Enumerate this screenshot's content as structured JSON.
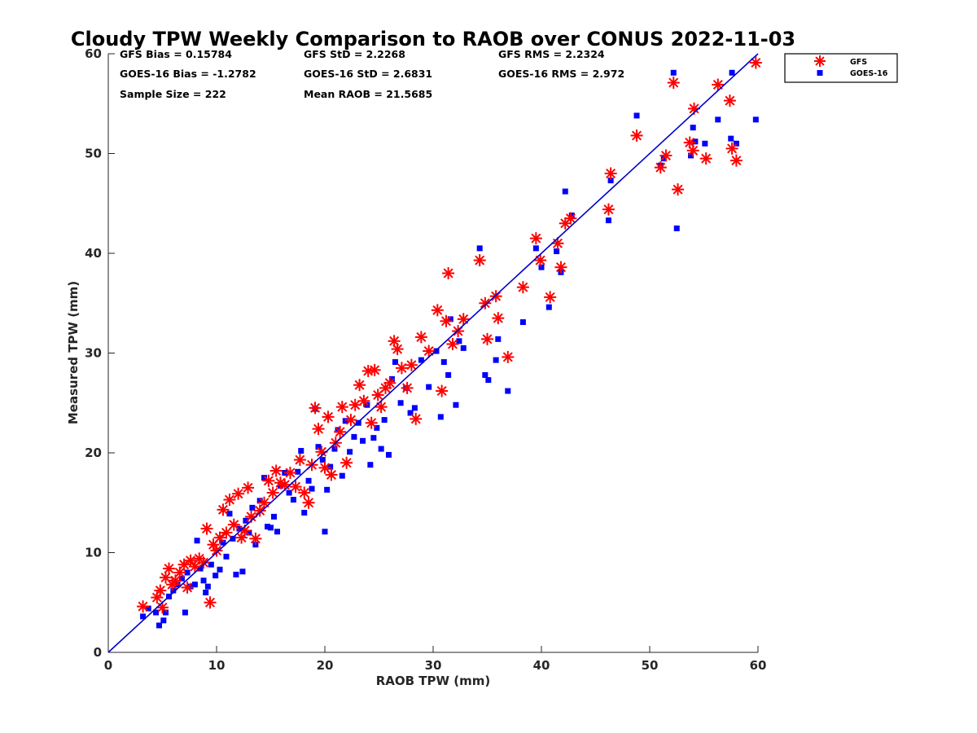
{
  "chart_data": {
    "type": "scatter",
    "title": "Cloudy TPW Weekly Comparison to RAOB over CONUS 2022-11-03",
    "xlabel": "RAOB TPW (mm)",
    "ylabel": "Measured TPW (mm)",
    "xlim": [
      0,
      60
    ],
    "ylim": [
      0,
      60
    ],
    "xticks": [
      "0",
      "10",
      "20",
      "30",
      "40",
      "50",
      "60"
    ],
    "yticks": [
      "0",
      "10",
      "20",
      "30",
      "40",
      "50",
      "60"
    ],
    "grid": false,
    "legend_position": "outside-top-right",
    "reference_line": {
      "x": [
        0,
        60
      ],
      "y": [
        0,
        60
      ],
      "color": "#0000cc"
    },
    "stats": {
      "gfs_bias": "GFS Bias = 0.15784",
      "gfs_std": "GFS StD = 2.2268",
      "gfs_rms": "GFS RMS = 2.2324",
      "goes_bias": "GOES-16 Bias = -1.2782",
      "goes_std": "GOES-16 StD = 2.6831",
      "goes_rms": "GOES-16 RMS = 2.972",
      "sample_size": "Sample Size = 222",
      "mean_raob": "Mean RAOB = 21.5685"
    },
    "series": [
      {
        "name": "GFS",
        "marker": "asterisk",
        "color": "#ff0000",
        "points": [
          [
            3.2,
            4.6
          ],
          [
            4.5,
            5.5
          ],
          [
            4.8,
            6.2
          ],
          [
            5.0,
            4.5
          ],
          [
            5.3,
            7.5
          ],
          [
            5.6,
            8.4
          ],
          [
            5.9,
            6.8
          ],
          [
            6.2,
            7.2
          ],
          [
            6.6,
            8.0
          ],
          [
            7.0,
            8.8
          ],
          [
            7.3,
            6.5
          ],
          [
            7.6,
            9.2
          ],
          [
            8.0,
            8.6
          ],
          [
            8.4,
            9.4
          ],
          [
            8.8,
            9.0
          ],
          [
            9.1,
            12.4
          ],
          [
            9.4,
            5.0
          ],
          [
            9.7,
            10.8
          ],
          [
            10.0,
            10.2
          ],
          [
            10.3,
            11.5
          ],
          [
            10.6,
            14.3
          ],
          [
            10.9,
            12.0
          ],
          [
            11.2,
            15.3
          ],
          [
            11.6,
            12.8
          ],
          [
            12.0,
            15.9
          ],
          [
            12.3,
            11.5
          ],
          [
            12.6,
            12.2
          ],
          [
            12.9,
            16.5
          ],
          [
            13.2,
            13.6
          ],
          [
            13.6,
            11.4
          ],
          [
            14.0,
            14.2
          ],
          [
            14.4,
            15.0
          ],
          [
            14.8,
            17.2
          ],
          [
            15.2,
            16.0
          ],
          [
            15.5,
            18.2
          ],
          [
            15.9,
            17.0
          ],
          [
            16.3,
            16.8
          ],
          [
            16.8,
            18.0
          ],
          [
            17.3,
            16.6
          ],
          [
            17.7,
            19.3
          ],
          [
            18.1,
            16.0
          ],
          [
            18.5,
            15.0
          ],
          [
            18.8,
            18.8
          ],
          [
            19.1,
            24.5
          ],
          [
            19.4,
            22.4
          ],
          [
            19.7,
            20.1
          ],
          [
            20.0,
            18.5
          ],
          [
            20.3,
            23.6
          ],
          [
            20.6,
            17.8
          ],
          [
            21.0,
            21.0
          ],
          [
            21.4,
            22.1
          ],
          [
            21.6,
            24.6
          ],
          [
            22.0,
            19.0
          ],
          [
            22.4,
            23.3
          ],
          [
            22.8,
            24.8
          ],
          [
            23.2,
            26.8
          ],
          [
            23.6,
            25.2
          ],
          [
            24.0,
            28.2
          ],
          [
            24.3,
            23.0
          ],
          [
            24.6,
            28.3
          ],
          [
            24.9,
            25.8
          ],
          [
            25.2,
            24.6
          ],
          [
            25.6,
            26.5
          ],
          [
            26.0,
            27.0
          ],
          [
            26.4,
            31.2
          ],
          [
            26.7,
            30.4
          ],
          [
            27.1,
            28.5
          ],
          [
            27.6,
            26.5
          ],
          [
            28.0,
            28.8
          ],
          [
            28.4,
            23.4
          ],
          [
            28.9,
            31.6
          ],
          [
            29.6,
            30.2
          ],
          [
            30.4,
            34.3
          ],
          [
            30.8,
            26.2
          ],
          [
            31.2,
            33.2
          ],
          [
            31.4,
            38.0
          ],
          [
            31.8,
            30.9
          ],
          [
            32.3,
            32.2
          ],
          [
            32.8,
            33.4
          ],
          [
            34.3,
            39.3
          ],
          [
            34.8,
            35.0
          ],
          [
            35.0,
            31.4
          ],
          [
            35.8,
            35.7
          ],
          [
            36.0,
            33.5
          ],
          [
            36.9,
            29.6
          ],
          [
            38.3,
            36.6
          ],
          [
            39.5,
            41.5
          ],
          [
            39.9,
            39.3
          ],
          [
            40.8,
            35.6
          ],
          [
            41.5,
            41.0
          ],
          [
            41.8,
            38.6
          ],
          [
            42.2,
            43.0
          ],
          [
            42.7,
            43.5
          ],
          [
            46.2,
            44.4
          ],
          [
            46.4,
            48.0
          ],
          [
            48.8,
            51.8
          ],
          [
            51.0,
            48.6
          ],
          [
            51.5,
            49.8
          ],
          [
            52.2,
            57.1
          ],
          [
            52.6,
            46.4
          ],
          [
            53.7,
            51.1
          ],
          [
            54.0,
            50.3
          ],
          [
            54.1,
            54.5
          ],
          [
            55.2,
            49.5
          ],
          [
            56.3,
            56.9
          ],
          [
            57.4,
            55.3
          ],
          [
            57.6,
            50.5
          ],
          [
            58.0,
            49.3
          ],
          [
            59.8,
            59.1
          ]
        ]
      },
      {
        "name": "GOES-16",
        "marker": "square",
        "color": "#0000ff",
        "points": [
          [
            3.2,
            3.6
          ],
          [
            3.7,
            4.4
          ],
          [
            4.4,
            4.0
          ],
          [
            4.7,
            2.7
          ],
          [
            5.1,
            3.2
          ],
          [
            5.3,
            4.0
          ],
          [
            5.6,
            5.6
          ],
          [
            6.0,
            6.2
          ],
          [
            6.4,
            6.8
          ],
          [
            6.8,
            7.4
          ],
          [
            7.1,
            4.0
          ],
          [
            7.3,
            8.0
          ],
          [
            7.6,
            6.6
          ],
          [
            8.0,
            6.8
          ],
          [
            8.2,
            11.2
          ],
          [
            8.5,
            8.4
          ],
          [
            8.8,
            7.2
          ],
          [
            9.0,
            6.0
          ],
          [
            9.2,
            6.6
          ],
          [
            9.5,
            8.8
          ],
          [
            9.9,
            7.7
          ],
          [
            10.3,
            8.3
          ],
          [
            10.6,
            11.0
          ],
          [
            10.9,
            9.6
          ],
          [
            11.2,
            13.9
          ],
          [
            11.5,
            11.4
          ],
          [
            11.8,
            7.8
          ],
          [
            12.1,
            12.4
          ],
          [
            12.4,
            8.1
          ],
          [
            12.7,
            13.2
          ],
          [
            13.0,
            12.0
          ],
          [
            13.3,
            14.5
          ],
          [
            13.6,
            10.8
          ],
          [
            14.0,
            15.2
          ],
          [
            14.4,
            17.5
          ],
          [
            14.7,
            12.6
          ],
          [
            15.0,
            12.5
          ],
          [
            15.3,
            13.6
          ],
          [
            15.6,
            12.1
          ],
          [
            15.9,
            16.7
          ],
          [
            16.3,
            18.0
          ],
          [
            16.7,
            16.0
          ],
          [
            17.1,
            15.3
          ],
          [
            17.5,
            18.1
          ],
          [
            17.8,
            20.2
          ],
          [
            18.1,
            14.0
          ],
          [
            18.5,
            17.2
          ],
          [
            18.8,
            16.4
          ],
          [
            19.1,
            24.4
          ],
          [
            19.4,
            20.6
          ],
          [
            19.8,
            19.3
          ],
          [
            20.0,
            12.1
          ],
          [
            20.2,
            16.3
          ],
          [
            20.5,
            18.6
          ],
          [
            20.9,
            20.4
          ],
          [
            21.2,
            22.3
          ],
          [
            21.6,
            17.7
          ],
          [
            21.9,
            23.2
          ],
          [
            22.3,
            20.1
          ],
          [
            22.7,
            21.6
          ],
          [
            23.1,
            23.0
          ],
          [
            23.5,
            21.2
          ],
          [
            23.9,
            24.8
          ],
          [
            24.2,
            18.8
          ],
          [
            24.5,
            21.5
          ],
          [
            24.8,
            22.5
          ],
          [
            25.2,
            20.4
          ],
          [
            25.5,
            23.3
          ],
          [
            25.9,
            19.8
          ],
          [
            26.2,
            27.4
          ],
          [
            26.5,
            29.1
          ],
          [
            27.0,
            25.0
          ],
          [
            27.5,
            26.5
          ],
          [
            27.9,
            24.0
          ],
          [
            28.3,
            24.5
          ],
          [
            28.9,
            29.3
          ],
          [
            29.6,
            26.6
          ],
          [
            30.3,
            30.2
          ],
          [
            30.7,
            23.6
          ],
          [
            31.0,
            29.1
          ],
          [
            31.4,
            27.8
          ],
          [
            31.6,
            33.4
          ],
          [
            32.1,
            24.8
          ],
          [
            32.4,
            31.2
          ],
          [
            32.8,
            30.5
          ],
          [
            34.3,
            40.5
          ],
          [
            34.8,
            27.8
          ],
          [
            35.1,
            27.3
          ],
          [
            35.8,
            29.3
          ],
          [
            36.0,
            31.4
          ],
          [
            36.9,
            26.2
          ],
          [
            38.3,
            33.1
          ],
          [
            39.5,
            40.5
          ],
          [
            40.0,
            38.6
          ],
          [
            40.7,
            34.6
          ],
          [
            41.4,
            40.2
          ],
          [
            41.8,
            38.1
          ],
          [
            42.2,
            46.2
          ],
          [
            42.8,
            43.8
          ],
          [
            46.2,
            43.3
          ],
          [
            46.4,
            47.3
          ],
          [
            48.8,
            53.8
          ],
          [
            51.0,
            48.8
          ],
          [
            51.3,
            49.5
          ],
          [
            52.2,
            58.1
          ],
          [
            52.5,
            42.5
          ],
          [
            53.8,
            49.8
          ],
          [
            54.0,
            52.6
          ],
          [
            54.2,
            51.2
          ],
          [
            55.1,
            51.0
          ],
          [
            56.3,
            53.4
          ],
          [
            57.5,
            51.5
          ],
          [
            57.6,
            58.1
          ],
          [
            58.0,
            51.0
          ],
          [
            59.8,
            53.4
          ]
        ]
      }
    ]
  }
}
